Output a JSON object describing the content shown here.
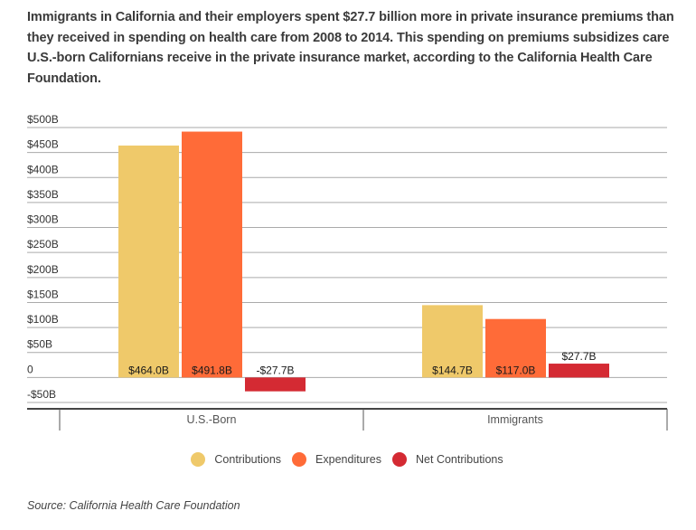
{
  "description": "Immigrants in California and their employers spent $27.7 billion more in private insurance premiums than they received in spending on health care from 2008 to 2014. This spending on premiums subsidizes care U.S.-born Californians receive in the private insurance market, according to the California Health Care Foundation.",
  "source": "Source: California Health Care Foundation",
  "chart_data": {
    "type": "bar",
    "title": "",
    "xlabel": "",
    "ylabel": "",
    "ylim": [
      -50,
      500
    ],
    "yticks": [
      -50,
      0,
      50,
      100,
      150,
      200,
      250,
      300,
      350,
      400,
      450,
      500
    ],
    "ytick_labels": [
      "-$50B",
      "0",
      "$50B",
      "$100B",
      "$150B",
      "$200B",
      "$250B",
      "$300B",
      "$350B",
      "$400B",
      "$450B",
      "$500B"
    ],
    "grid": true,
    "legend_position": "bottom",
    "categories": [
      "U.S.-Born",
      "Immigrants"
    ],
    "series": [
      {
        "name": "Contributions",
        "color": "#EFC96A",
        "values": [
          464.0,
          144.7
        ],
        "labels": [
          "$464.0B",
          "$144.7B"
        ]
      },
      {
        "name": "Expenditures",
        "color": "#FF6B38",
        "values": [
          491.8,
          117.0
        ],
        "labels": [
          "$491.8B",
          "$117.0B"
        ]
      },
      {
        "name": "Net Contributions",
        "color": "#D42A33",
        "values": [
          -27.7,
          27.7
        ],
        "labels": [
          "-$27.7B",
          "$27.7B"
        ]
      }
    ]
  }
}
